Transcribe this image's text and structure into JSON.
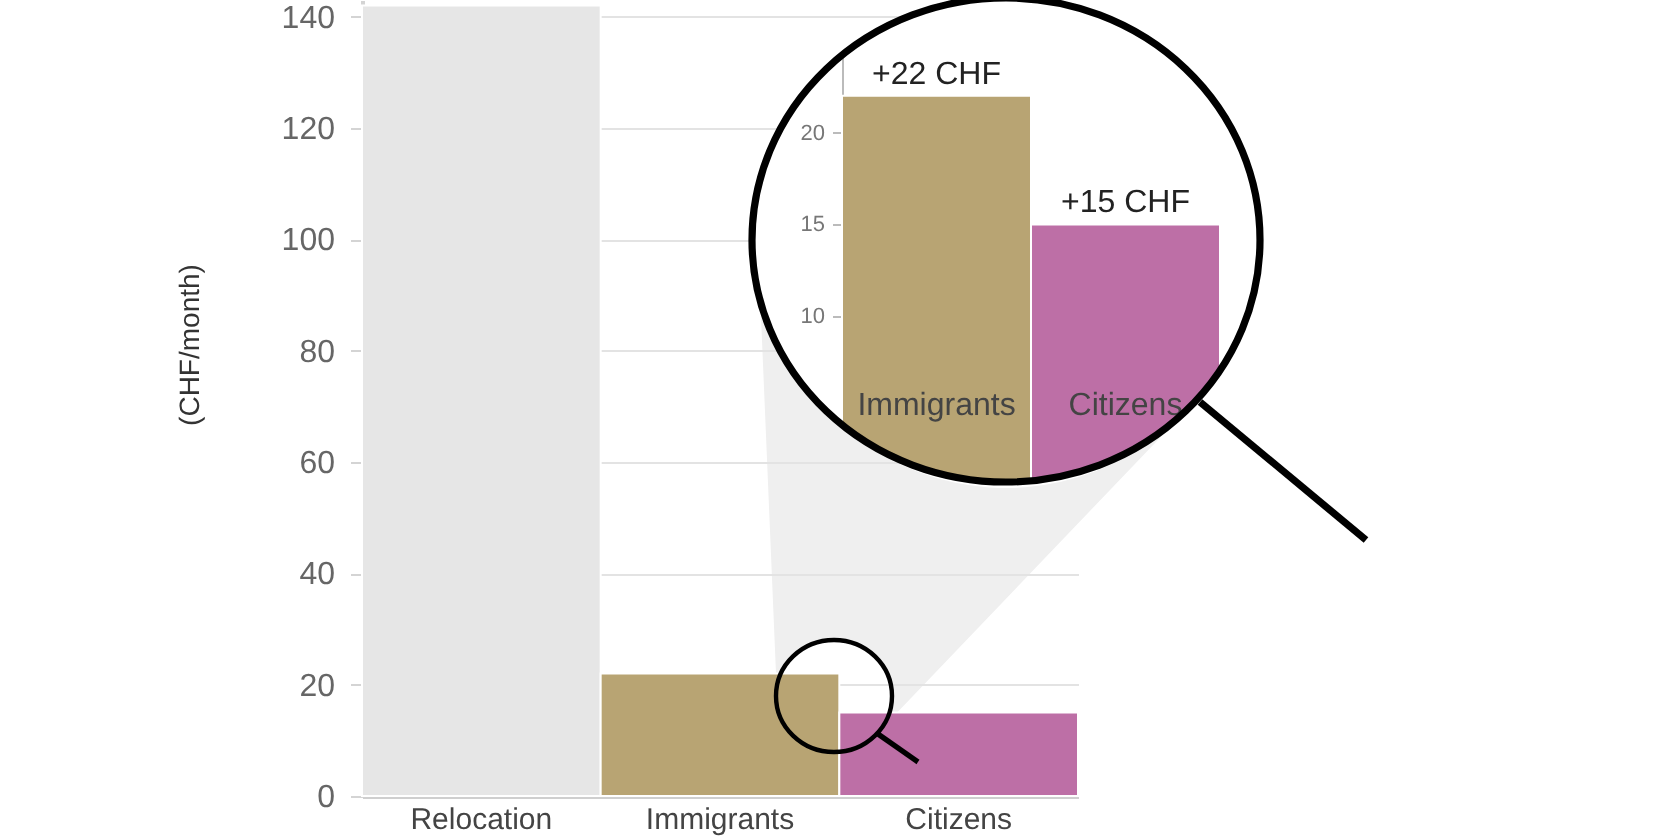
{
  "chart_data": [
    {
      "type": "bar",
      "ylabel": "(CHF/month)",
      "categories": [
        "Relocation",
        "Immigrants",
        "Citizens"
      ],
      "values": [
        142,
        22,
        15
      ],
      "colors": [
        "#e6e6e6",
        "#b8a473",
        "#bd6fa6"
      ],
      "ylim": [
        0,
        143
      ],
      "yticks": [
        0,
        20,
        40,
        60,
        80,
        100,
        120,
        140
      ],
      "grid": "y"
    },
    {
      "type": "bar",
      "categories": [
        "Immigrants",
        "Citizens"
      ],
      "values": [
        22,
        15
      ],
      "colors": [
        "#b8a473",
        "#bd6fa6"
      ],
      "ylim": [
        0,
        27
      ],
      "yticks": [
        10,
        15,
        20
      ],
      "value_labels": [
        "+22 CHF",
        "+15 CHF"
      ]
    }
  ]
}
